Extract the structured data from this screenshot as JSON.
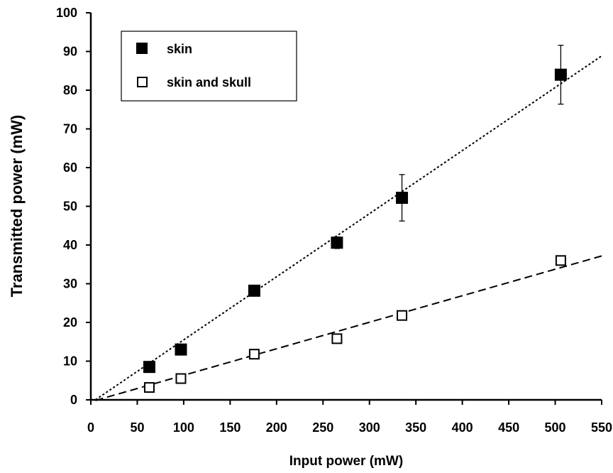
{
  "chart_data": {
    "type": "scatter",
    "xlabel": "Input power (mW)",
    "ylabel": "Transmitted power (mW)",
    "xlim": [
      0,
      550
    ],
    "ylim": [
      0,
      100
    ],
    "xticks": [
      0,
      50,
      100,
      150,
      200,
      250,
      300,
      350,
      400,
      450,
      500,
      550
    ],
    "yticks": [
      0,
      10,
      20,
      30,
      40,
      50,
      60,
      70,
      80,
      90,
      100
    ],
    "grid": false,
    "legend_position": "top-left",
    "series": [
      {
        "name": "skin",
        "marker": "filled-square",
        "color": "#000000",
        "points": [
          {
            "x": 63,
            "y": 8.5
          },
          {
            "x": 97,
            "y": 13
          },
          {
            "x": 176,
            "y": 28.2
          },
          {
            "x": 265,
            "y": 40.6,
            "err": 1.5
          },
          {
            "x": 335,
            "y": 52.2,
            "err": 6
          },
          {
            "x": 506,
            "y": 84,
            "err": 7.6
          }
        ],
        "fit": {
          "style": "dotted",
          "slope": 0.163,
          "intercept": -0.8
        }
      },
      {
        "name": "skin and skull",
        "marker": "open-square",
        "color": "#000000",
        "points": [
          {
            "x": 63,
            "y": 3.2
          },
          {
            "x": 97,
            "y": 5.5
          },
          {
            "x": 176,
            "y": 11.8
          },
          {
            "x": 265,
            "y": 15.8
          },
          {
            "x": 335,
            "y": 21.8
          },
          {
            "x": 506,
            "y": 36
          }
        ],
        "fit": {
          "style": "dashed",
          "slope": 0.0685,
          "intercept": -0.5
        }
      }
    ]
  }
}
